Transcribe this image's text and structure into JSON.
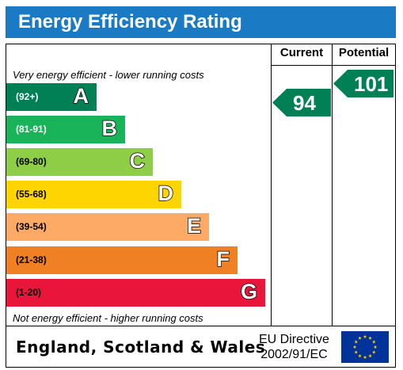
{
  "header": {
    "title": "Energy Efficiency Rating"
  },
  "columns": {
    "current_label": "Current",
    "potential_label": "Potential"
  },
  "notes": {
    "top": "Very energy efficient - lower running costs",
    "bottom": "Not energy efficient - higher running costs"
  },
  "footer": {
    "region": "England, Scotland & Wales",
    "directive_line1": "EU Directive",
    "directive_line2": "2002/91/EC"
  },
  "chart_data": {
    "type": "bar",
    "categories": [
      "A",
      "B",
      "C",
      "D",
      "E",
      "F",
      "G"
    ],
    "bands": [
      {
        "letter": "A",
        "range": "(92+)",
        "color": "#008054"
      },
      {
        "letter": "B",
        "range": "(81-91)",
        "color": "#19b459"
      },
      {
        "letter": "C",
        "range": "(69-80)",
        "color": "#8dce46"
      },
      {
        "letter": "D",
        "range": "(55-68)",
        "color": "#ffd500"
      },
      {
        "letter": "E",
        "range": "(39-54)",
        "color": "#fcaa65"
      },
      {
        "letter": "F",
        "range": "(21-38)",
        "color": "#ef8023"
      },
      {
        "letter": "G",
        "range": "(1-20)",
        "color": "#e9153b"
      }
    ],
    "current": {
      "value": 94,
      "band": "A",
      "color": "#008054"
    },
    "potential": {
      "value": 101,
      "band": "A",
      "color": "#008054"
    }
  }
}
